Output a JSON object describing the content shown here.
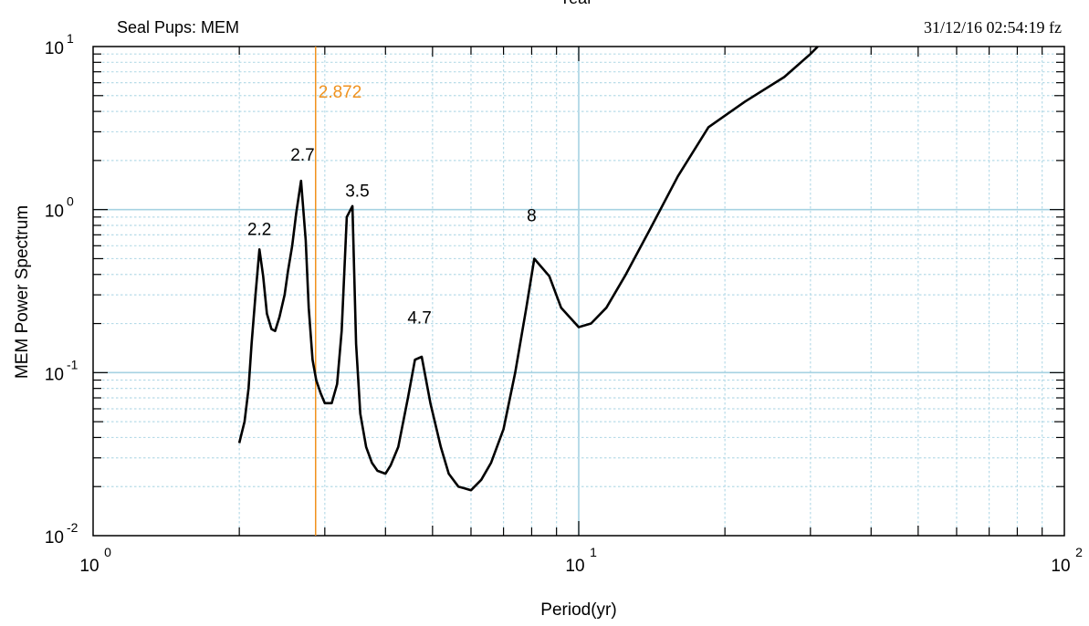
{
  "header": {
    "top_title": "Year",
    "subtitle": "Seal Pups: MEM",
    "timestamp": "31/12/16  02:54:19 fz"
  },
  "chart_data": {
    "type": "line",
    "xscale": "log",
    "yscale": "log",
    "xlim": [
      1,
      100
    ],
    "ylim": [
      0.01,
      10
    ],
    "xlabel": "Period(yr)",
    "ylabel": "MEM Power Spectrum",
    "x_ticks": [
      {
        "value": 1,
        "base": "10",
        "exp": "0"
      },
      {
        "value": 10,
        "base": "10",
        "exp": "1"
      },
      {
        "value": 100,
        "base": "10",
        "exp": "2"
      }
    ],
    "y_ticks": [
      {
        "value": 0.01,
        "base": "10",
        "exp": "-2"
      },
      {
        "value": 0.1,
        "base": "10",
        "exp": "-1"
      },
      {
        "value": 1,
        "base": "10",
        "exp": "0"
      },
      {
        "value": 10,
        "base": "10",
        "exp": "1"
      }
    ],
    "grid": true,
    "colors": {
      "line": "#000000",
      "marker": "#f0921e",
      "grid_major": "#a6d2e2",
      "grid_minor": "#b7dbe8"
    },
    "series": [
      {
        "points": [
          [
            2.0,
            0.037
          ],
          [
            2.05,
            0.05
          ],
          [
            2.09,
            0.08
          ],
          [
            2.12,
            0.15
          ],
          [
            2.16,
            0.3
          ],
          [
            2.2,
            0.57
          ],
          [
            2.24,
            0.39
          ],
          [
            2.28,
            0.23
          ],
          [
            2.33,
            0.185
          ],
          [
            2.37,
            0.18
          ],
          [
            2.42,
            0.22
          ],
          [
            2.48,
            0.3
          ],
          [
            2.52,
            0.42
          ],
          [
            2.57,
            0.6
          ],
          [
            2.62,
            0.95
          ],
          [
            2.68,
            1.5
          ],
          [
            2.74,
            0.65
          ],
          [
            2.78,
            0.25
          ],
          [
            2.83,
            0.12
          ],
          [
            2.88,
            0.09
          ],
          [
            2.94,
            0.075
          ],
          [
            3.0,
            0.065
          ],
          [
            3.1,
            0.065
          ],
          [
            3.18,
            0.085
          ],
          [
            3.25,
            0.18
          ],
          [
            3.33,
            0.9
          ],
          [
            3.42,
            1.05
          ],
          [
            3.48,
            0.15
          ],
          [
            3.55,
            0.056
          ],
          [
            3.65,
            0.035
          ],
          [
            3.75,
            0.028
          ],
          [
            3.85,
            0.025
          ],
          [
            4.0,
            0.024
          ],
          [
            4.1,
            0.027
          ],
          [
            4.25,
            0.035
          ],
          [
            4.45,
            0.07
          ],
          [
            4.6,
            0.12
          ],
          [
            4.75,
            0.125
          ],
          [
            4.95,
            0.065
          ],
          [
            5.2,
            0.035
          ],
          [
            5.4,
            0.024
          ],
          [
            5.65,
            0.02
          ],
          [
            6.0,
            0.019
          ],
          [
            6.3,
            0.022
          ],
          [
            6.6,
            0.028
          ],
          [
            7.0,
            0.045
          ],
          [
            7.4,
            0.1
          ],
          [
            7.8,
            0.25
          ],
          [
            8.1,
            0.5
          ],
          [
            8.7,
            0.39
          ],
          [
            9.2,
            0.25
          ],
          [
            10.0,
            0.19
          ],
          [
            10.6,
            0.2
          ],
          [
            11.4,
            0.25
          ],
          [
            12.5,
            0.4
          ],
          [
            14.0,
            0.75
          ],
          [
            16.0,
            1.6
          ],
          [
            18.5,
            3.2
          ],
          [
            22.0,
            4.6
          ],
          [
            26.5,
            6.5
          ],
          [
            30.0,
            9.0
          ],
          [
            33.0,
            12.0
          ]
        ]
      }
    ],
    "reference_line": {
      "x": 2.872,
      "label": "2.872"
    },
    "annotations": [
      {
        "text": "2.2",
        "x": 2.2,
        "y": 0.7
      },
      {
        "text": "2.7",
        "x": 2.7,
        "y": 2.0
      },
      {
        "text": "3.5",
        "x": 3.5,
        "y": 1.2
      },
      {
        "text": "8",
        "x": 8.0,
        "y": 0.85
      },
      {
        "text": "4.7",
        "x": 4.7,
        "y": 0.2
      }
    ]
  }
}
